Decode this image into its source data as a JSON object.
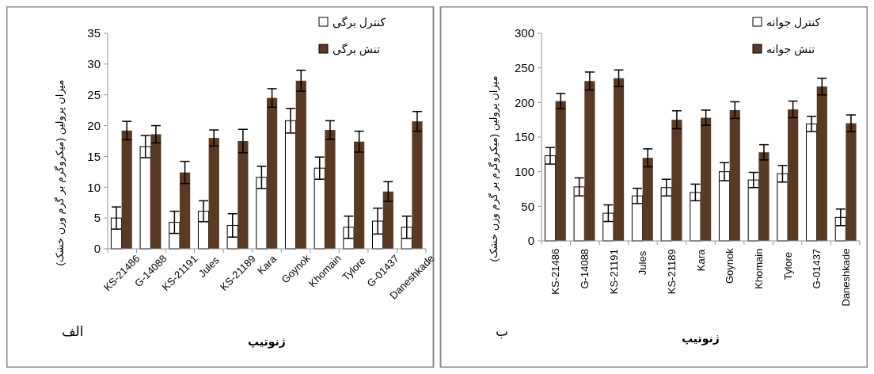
{
  "chart_data": [
    {
      "type": "bar",
      "ylabel": "میزان پرولین (میکروگرم بر گرم وزن خشک)",
      "xlabel": "ژنوتیپ",
      "annotations": [
        "الف"
      ],
      "categories": [
        "KS-21486",
        "G-14088",
        "KS-21191",
        "Jules",
        "KS-21189",
        "Kara",
        "Goynok",
        "Khomain",
        "Tylore",
        "G-01437",
        "Daneshkade"
      ],
      "series": [
        {
          "name": "کنترل برگی",
          "color": "#ffffff",
          "values": [
            5,
            16.6,
            4.3,
            6.1,
            3.8,
            11.6,
            20.8,
            13.1,
            3.5,
            4.5,
            3.5
          ],
          "errors": [
            1.8,
            1.8,
            1.8,
            1.7,
            1.9,
            1.8,
            2,
            1.8,
            1.8,
            2.1,
            1.8
          ]
        },
        {
          "name": "تنش برگی",
          "color": "#5a3a22",
          "values": [
            19.2,
            18.6,
            12.4,
            18,
            17.5,
            24.5,
            27.3,
            19.3,
            17.4,
            9.3,
            20.7
          ],
          "errors": [
            1.5,
            1.4,
            1.8,
            1.3,
            1.9,
            1.5,
            1.7,
            1.5,
            1.7,
            1.6,
            1.6
          ]
        }
      ],
      "ylim": [
        0,
        35
      ],
      "yticks": [
        0,
        5,
        10,
        15,
        20,
        25,
        30,
        35
      ],
      "legend": "top right"
    },
    {
      "type": "bar",
      "ylabel": "میزان پرولین (میکروگرم بر گرم وزن خشک)",
      "xlabel": "ژنوتیپ",
      "annotations": [
        "ب"
      ],
      "categories": [
        "KS-21486",
        "G-14088",
        "KS-21191",
        "Jules",
        "KS-21189",
        "Kara",
        "Goynok",
        "Khomain",
        "Tylore",
        "G-01437",
        "Daneshkade"
      ],
      "series": [
        {
          "name": "کنترل جوانه",
          "color": "#ffffff",
          "values": [
            123,
            78,
            40,
            65,
            77,
            70,
            100,
            88,
            97,
            169,
            34
          ],
          "errors": [
            12,
            13,
            12,
            11,
            12,
            12,
            13,
            11,
            12,
            11,
            12
          ]
        },
        {
          "name": "تنش جوانه",
          "color": "#5a3a22",
          "values": [
            202,
            231,
            235,
            120,
            175,
            178,
            189,
            128,
            190,
            223,
            170
          ],
          "errors": [
            11,
            13,
            12,
            13,
            13,
            11,
            12,
            11,
            12,
            12,
            12
          ]
        }
      ],
      "ylim": [
        0,
        300
      ],
      "yticks": [
        0,
        50,
        100,
        150,
        200,
        250,
        300
      ],
      "legend": "top right"
    }
  ]
}
